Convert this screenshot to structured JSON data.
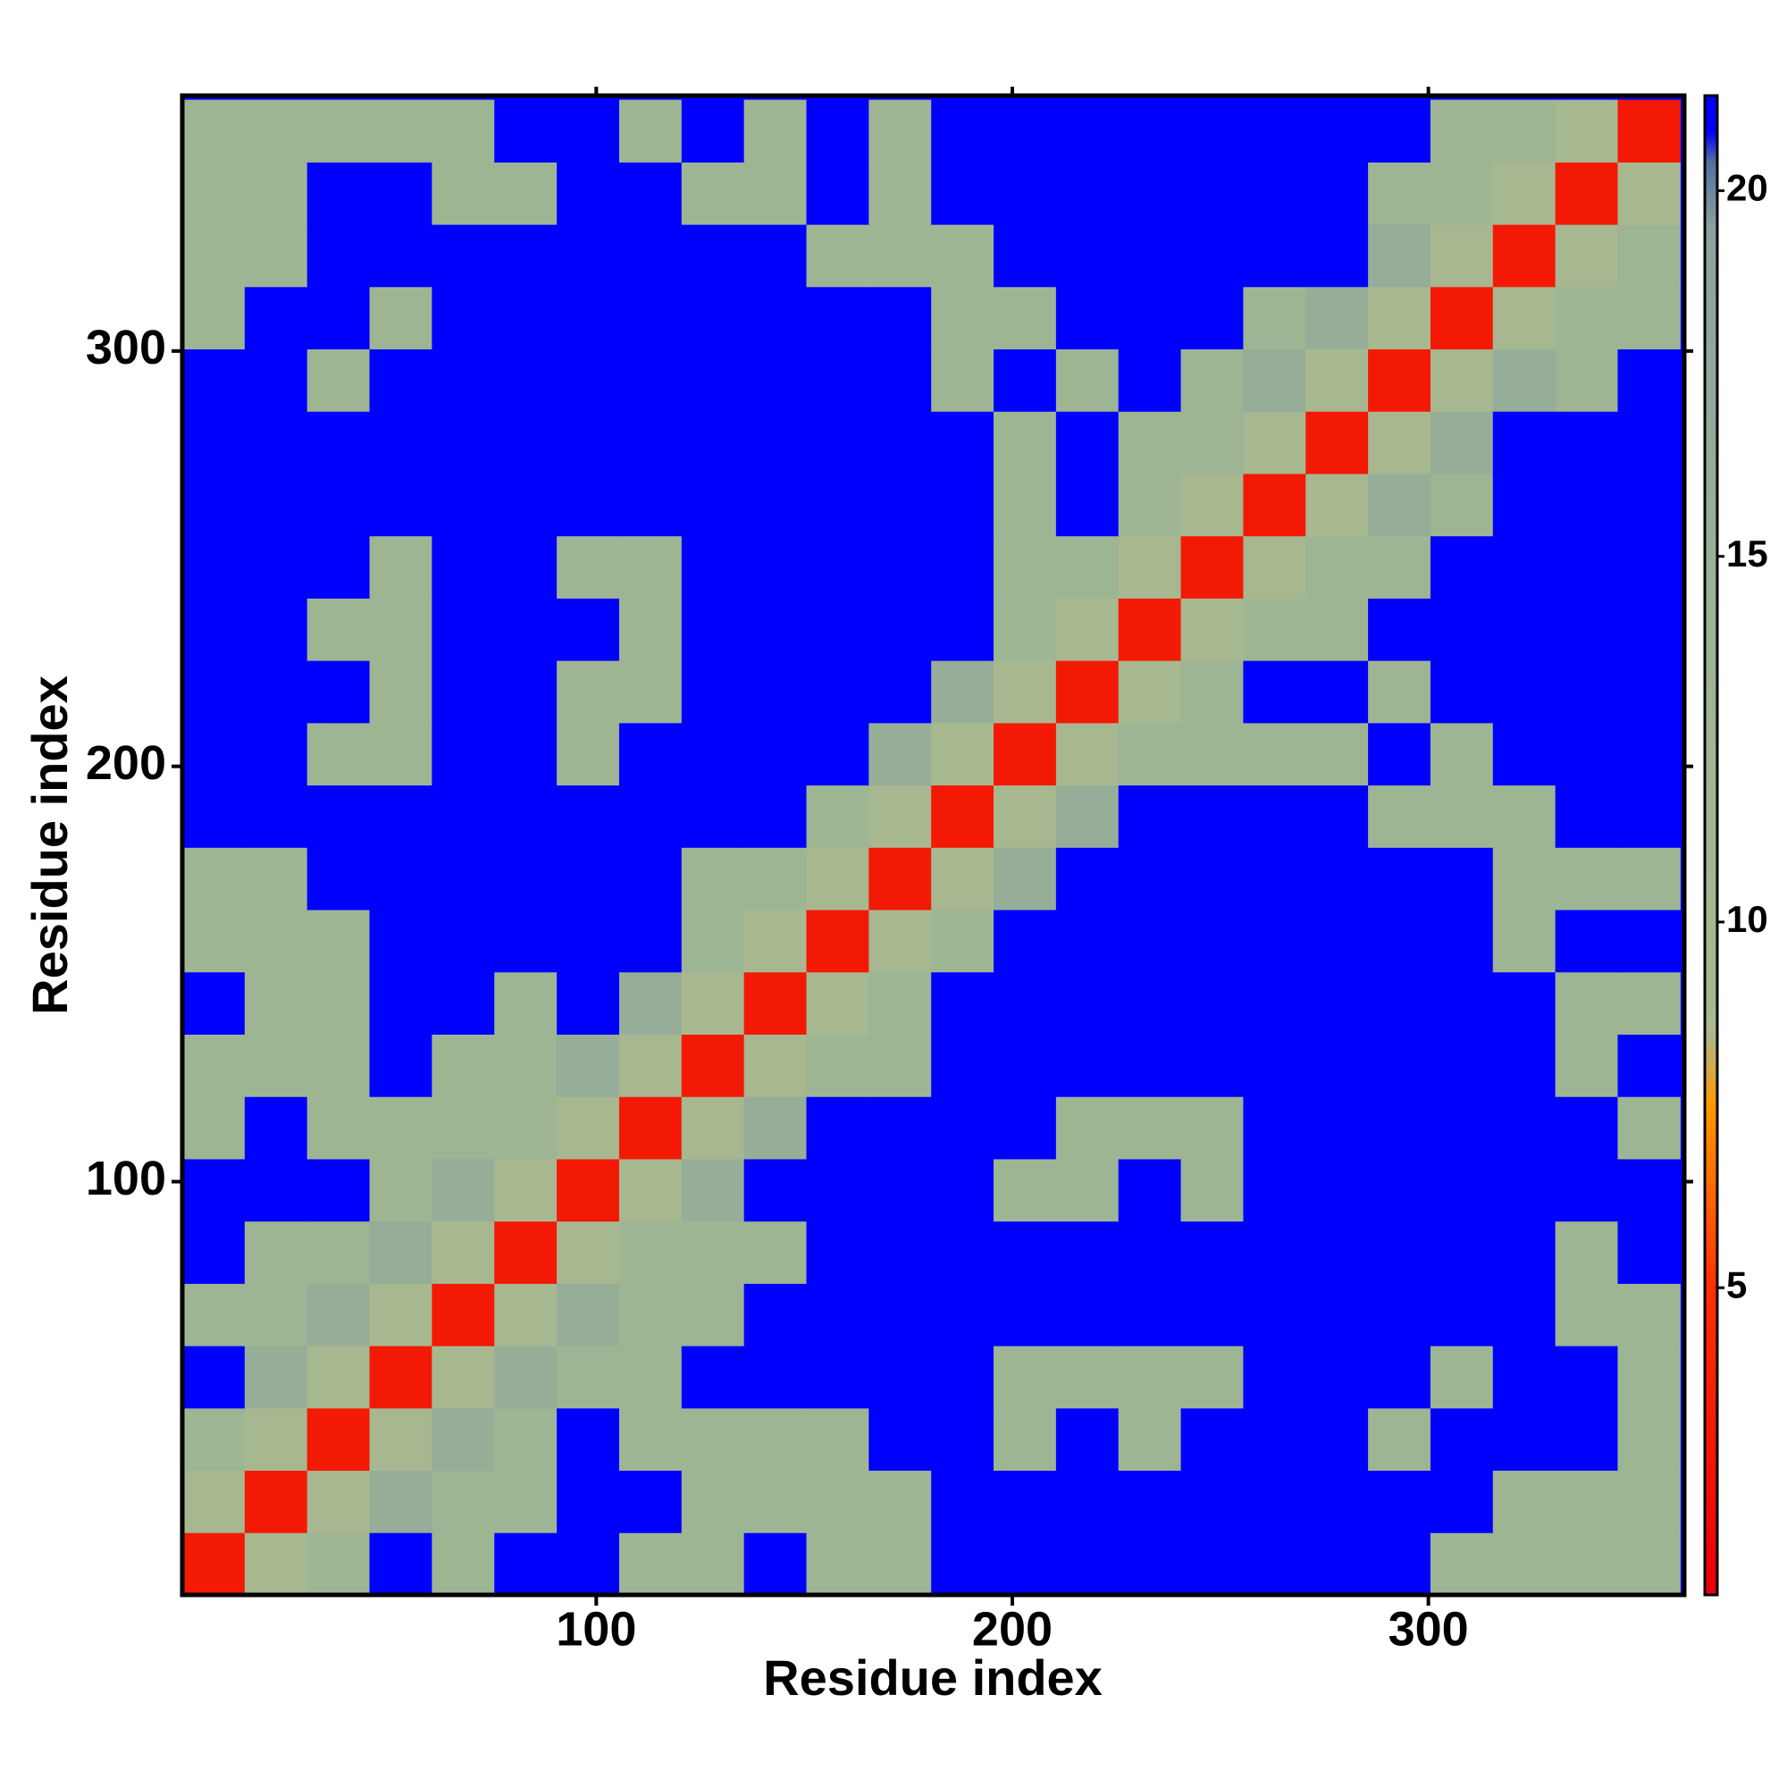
{
  "chart_data": {
    "type": "heatmap",
    "xlabel": "Residue index",
    "ylabel": "Residue index",
    "xlim": [
      0.5,
      361.5
    ],
    "ylim": [
      0.5,
      361.5
    ],
    "xticks": [
      100,
      200,
      300
    ],
    "yticks": [
      100,
      200,
      300
    ],
    "xbins": [
      0.5,
      15.5,
      30.5,
      45.5,
      60.5,
      75.5,
      90.5,
      105.5,
      120.5,
      135.5,
      150.5,
      165.5,
      180.5,
      195.5,
      210.5,
      225.5,
      240.5,
      255.5,
      270.5,
      285.5,
      300.5,
      315.5,
      330.5,
      345.5,
      360.5
    ],
    "ybins": [
      0.5,
      15.5,
      30.5,
      45.5,
      60.5,
      75.5,
      90.5,
      105.5,
      120.5,
      135.5,
      150.5,
      165.5,
      180.5,
      195.5,
      210.5,
      225.5,
      240.5,
      255.5,
      270.5,
      285.5,
      300.5,
      315.5,
      330.5,
      345.5,
      360.5
    ],
    "zlim": [
      0.8,
      21.3
    ],
    "zticks": [
      5,
      10,
      15,
      20
    ],
    "colorscale": [
      [
        0.8,
        "#e8000b"
      ],
      [
        5,
        "#ff3000"
      ],
      [
        7.5,
        "#ff9900"
      ],
      [
        8.5,
        "#a8b890"
      ],
      [
        14,
        "#9cb494"
      ],
      [
        19.5,
        "#8ca0a0"
      ],
      [
        20.4,
        "#5070a0"
      ],
      [
        20.8,
        "#0000ff"
      ],
      [
        21.3,
        "#0000ff"
      ]
    ],
    "values": [
      [
        3,
        9,
        13,
        21,
        13,
        21,
        21,
        13,
        13,
        21,
        13,
        13,
        21,
        21,
        21,
        21,
        21,
        21,
        21,
        21,
        13,
        13,
        13,
        13
      ],
      [
        9,
        3,
        9,
        16,
        13,
        13,
        21,
        21,
        13,
        13,
        13,
        13,
        21,
        21,
        21,
        21,
        21,
        21,
        21,
        21,
        21,
        13,
        13,
        13
      ],
      [
        13,
        9,
        3,
        9,
        16,
        13,
        21,
        13,
        13,
        13,
        13,
        21,
        21,
        13,
        21,
        13,
        21,
        21,
        21,
        13,
        21,
        21,
        21,
        13
      ],
      [
        21,
        16,
        9,
        3,
        9,
        16,
        13,
        13,
        21,
        21,
        21,
        21,
        21,
        13,
        13,
        13,
        13,
        21,
        21,
        21,
        13,
        21,
        21,
        13
      ],
      [
        13,
        13,
        16,
        9,
        3,
        9,
        16,
        13,
        13,
        21,
        21,
        21,
        21,
        21,
        21,
        21,
        21,
        21,
        21,
        21,
        21,
        21,
        13,
        13
      ],
      [
        21,
        13,
        13,
        16,
        9,
        3,
        9,
        13,
        13,
        13,
        21,
        21,
        21,
        21,
        21,
        21,
        21,
        21,
        21,
        21,
        21,
        21,
        13,
        21
      ],
      [
        21,
        21,
        21,
        13,
        16,
        9,
        3,
        9,
        16,
        21,
        21,
        21,
        21,
        13,
        13,
        21,
        13,
        21,
        21,
        21,
        21,
        21,
        21,
        21
      ],
      [
        13,
        21,
        13,
        13,
        13,
        13,
        9,
        3,
        9,
        16,
        21,
        21,
        21,
        21,
        13,
        13,
        13,
        21,
        21,
        21,
        21,
        21,
        21,
        13
      ],
      [
        13,
        13,
        13,
        21,
        13,
        13,
        16,
        9,
        3,
        9,
        13,
        13,
        21,
        21,
        21,
        21,
        21,
        21,
        21,
        21,
        21,
        21,
        13,
        21
      ],
      [
        21,
        13,
        13,
        21,
        21,
        13,
        21,
        16,
        9,
        3,
        9,
        13,
        21,
        21,
        21,
        21,
        21,
        21,
        21,
        21,
        21,
        21,
        13,
        13
      ],
      [
        13,
        13,
        13,
        21,
        21,
        21,
        21,
        21,
        13,
        9,
        3,
        9,
        13,
        21,
        21,
        21,
        21,
        21,
        21,
        21,
        21,
        13,
        21,
        21
      ],
      [
        13,
        13,
        21,
        21,
        21,
        21,
        21,
        21,
        13,
        13,
        9,
        3,
        9,
        16,
        21,
        21,
        21,
        21,
        21,
        21,
        21,
        13,
        13,
        13
      ],
      [
        21,
        21,
        21,
        21,
        21,
        21,
        21,
        21,
        21,
        21,
        13,
        9,
        3,
        9,
        16,
        21,
        21,
        21,
        21,
        13,
        13,
        13,
        21,
        21
      ],
      [
        21,
        21,
        13,
        13,
        21,
        21,
        13,
        21,
        21,
        21,
        21,
        16,
        9,
        3,
        9,
        13,
        13,
        13,
        13,
        21,
        13,
        21,
        21,
        21
      ],
      [
        21,
        21,
        21,
        13,
        21,
        21,
        13,
        13,
        21,
        21,
        21,
        21,
        16,
        9,
        3,
        9,
        13,
        21,
        21,
        13,
        21,
        21,
        21,
        21
      ],
      [
        21,
        21,
        13,
        13,
        21,
        21,
        21,
        13,
        21,
        21,
        21,
        21,
        21,
        13,
        9,
        3,
        9,
        13,
        13,
        21,
        21,
        21,
        21,
        21
      ],
      [
        21,
        21,
        21,
        13,
        21,
        21,
        13,
        13,
        21,
        21,
        21,
        21,
        21,
        13,
        13,
        9,
        3,
        9,
        13,
        13,
        21,
        21,
        21,
        21
      ],
      [
        21,
        21,
        21,
        21,
        21,
        21,
        21,
        21,
        21,
        21,
        21,
        21,
        21,
        13,
        21,
        13,
        9,
        3,
        9,
        16,
        13,
        21,
        21,
        21
      ],
      [
        21,
        21,
        21,
        21,
        21,
        21,
        21,
        21,
        21,
        21,
        21,
        21,
        21,
        13,
        21,
        13,
        13,
        9,
        3,
        9,
        16,
        21,
        21,
        21
      ],
      [
        21,
        21,
        13,
        21,
        21,
        21,
        21,
        21,
        21,
        21,
        21,
        21,
        13,
        21,
        13,
        21,
        13,
        16,
        9,
        3,
        9,
        16,
        13,
        21
      ],
      [
        13,
        21,
        21,
        13,
        21,
        21,
        21,
        21,
        21,
        21,
        21,
        21,
        13,
        13,
        21,
        21,
        21,
        13,
        16,
        9,
        3,
        9,
        13,
        13
      ],
      [
        13,
        13,
        21,
        21,
        21,
        21,
        21,
        21,
        21,
        21,
        13,
        13,
        13,
        21,
        21,
        21,
        21,
        21,
        21,
        16,
        9,
        3,
        9,
        13
      ],
      [
        13,
        13,
        21,
        21,
        13,
        13,
        21,
        21,
        13,
        13,
        21,
        13,
        21,
        21,
        21,
        21,
        21,
        21,
        21,
        13,
        13,
        9,
        3,
        9
      ],
      [
        13,
        13,
        13,
        13,
        13,
        21,
        21,
        13,
        21,
        13,
        21,
        13,
        21,
        21,
        21,
        21,
        21,
        21,
        21,
        21,
        13,
        13,
        9,
        3
      ]
    ]
  }
}
